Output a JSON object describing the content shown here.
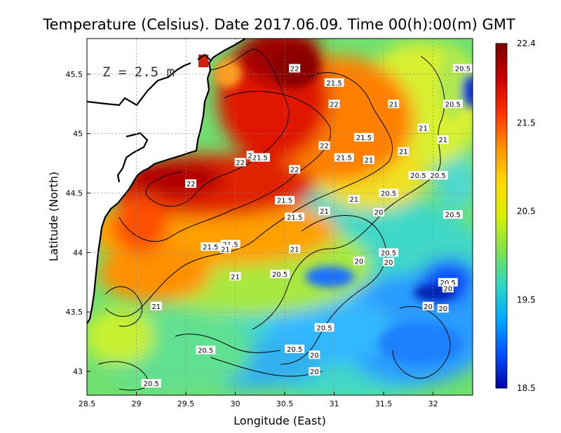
{
  "title": "Temperature (Celsius). Date 2017.06.09. Time 00(h):00(m) GMT",
  "depth_label": "Z = 2.5 m",
  "x_axis": {
    "label": "Longitude (East)",
    "range": [
      28.5,
      32.4
    ],
    "ticks": [
      28.5,
      29,
      29.5,
      30,
      30.5,
      31,
      31.5,
      32
    ],
    "tick_labels": [
      "28.5",
      "29",
      "29.5",
      "30",
      "30.5",
      "31",
      "31.5",
      "32"
    ]
  },
  "y_axis": {
    "label": "Latitude (North)",
    "range": [
      42.8,
      45.8
    ],
    "ticks": [
      43,
      43.5,
      44,
      44.5,
      45,
      45.5
    ],
    "tick_labels": [
      "43",
      "43.5",
      "44",
      "44.5",
      "45",
      "45.5"
    ]
  },
  "grid": true,
  "colorbar": {
    "range": [
      18.5,
      22.4
    ],
    "ticks": [
      22.4,
      21.5,
      20.5,
      19.5,
      18.5
    ],
    "tick_labels": [
      "22.4",
      "21.5",
      "20.5",
      "19.5",
      "18.5"
    ],
    "colors": [
      "#7a0000",
      "#c80000",
      "#ff3000",
      "#ff9000",
      "#ffd800",
      "#d8f000",
      "#80e050",
      "#30d8c0",
      "#00a8ff",
      "#0050ff",
      "#0000a8"
    ]
  },
  "colors": {
    "land": "#ffffff",
    "coastline": "#000000",
    "contour_line": "#000000"
  },
  "contour_labels": [
    {
      "text": "22",
      "lon": 30.6,
      "lat": 45.55
    },
    {
      "text": "21.5",
      "lon": 31.0,
      "lat": 45.43
    },
    {
      "text": "22",
      "lon": 31.0,
      "lat": 45.25
    },
    {
      "text": "21",
      "lon": 31.6,
      "lat": 45.25
    },
    {
      "text": "21",
      "lon": 31.9,
      "lat": 45.05
    },
    {
      "text": "20.5",
      "lon": 32.3,
      "lat": 45.55
    },
    {
      "text": "20.5",
      "lon": 32.2,
      "lat": 45.25
    },
    {
      "text": "21.5",
      "lon": 31.3,
      "lat": 44.97
    },
    {
      "text": "22",
      "lon": 30.9,
      "lat": 44.9
    },
    {
      "text": "21",
      "lon": 31.7,
      "lat": 44.85
    },
    {
      "text": "21",
      "lon": 32.1,
      "lat": 44.95
    },
    {
      "text": "21.5",
      "lon": 31.1,
      "lat": 44.8
    },
    {
      "text": "21",
      "lon": 31.35,
      "lat": 44.78
    },
    {
      "text": "20.5",
      "lon": 31.85,
      "lat": 44.65
    },
    {
      "text": "20.5",
      "lon": 32.05,
      "lat": 44.65
    },
    {
      "text": "22",
      "lon": 30.6,
      "lat": 44.7
    },
    {
      "text": "22",
      "lon": 30.05,
      "lat": 44.76
    },
    {
      "text": "21.5",
      "lon": 30.25,
      "lat": 44.8
    },
    {
      "text": "2",
      "lon": 30.15,
      "lat": 44.82
    },
    {
      "text": "22",
      "lon": 29.55,
      "lat": 44.58
    },
    {
      "text": "21",
      "lon": 31.2,
      "lat": 44.45
    },
    {
      "text": "20.5",
      "lon": 31.55,
      "lat": 44.5
    },
    {
      "text": "21.5",
      "lon": 30.5,
      "lat": 44.44
    },
    {
      "text": "21",
      "lon": 30.9,
      "lat": 44.35
    },
    {
      "text": "20",
      "lon": 31.45,
      "lat": 44.34
    },
    {
      "text": "21.5",
      "lon": 30.6,
      "lat": 44.3
    },
    {
      "text": "20.5",
      "lon": 32.2,
      "lat": 44.32
    },
    {
      "text": "21.5",
      "lon": 29.75,
      "lat": 44.05
    },
    {
      "text": "21.5",
      "lon": 29.95,
      "lat": 44.07
    },
    {
      "text": "21",
      "lon": 29.9,
      "lat": 44.03
    },
    {
      "text": "21",
      "lon": 30.6,
      "lat": 44.03
    },
    {
      "text": "20.5",
      "lon": 31.55,
      "lat": 44.0
    },
    {
      "text": "20",
      "lon": 31.55,
      "lat": 43.92
    },
    {
      "text": "20",
      "lon": 31.25,
      "lat": 43.93
    },
    {
      "text": "21",
      "lon": 30.0,
      "lat": 43.8
    },
    {
      "text": "20.5",
      "lon": 30.45,
      "lat": 43.82
    },
    {
      "text": "20.5",
      "lon": 32.15,
      "lat": 43.75
    },
    {
      "text": "20",
      "lon": 32.15,
      "lat": 43.7
    },
    {
      "text": "21",
      "lon": 29.2,
      "lat": 43.55
    },
    {
      "text": "20",
      "lon": 31.95,
      "lat": 43.55
    },
    {
      "text": "20",
      "lon": 32.1,
      "lat": 43.53
    },
    {
      "text": "20.5",
      "lon": 30.9,
      "lat": 43.37
    },
    {
      "text": "20.5",
      "lon": 29.7,
      "lat": 43.18
    },
    {
      "text": "20.5",
      "lon": 30.6,
      "lat": 43.19
    },
    {
      "text": "20",
      "lon": 30.8,
      "lat": 43.14
    },
    {
      "text": "20",
      "lon": 32.5,
      "lat": 43.28
    },
    {
      "text": "20",
      "lon": 32.6,
      "lat": 43.13
    },
    {
      "text": "20",
      "lon": 30.8,
      "lat": 43.0
    },
    {
      "text": "20.5",
      "lon": 29.15,
      "lat": 42.9
    }
  ]
}
